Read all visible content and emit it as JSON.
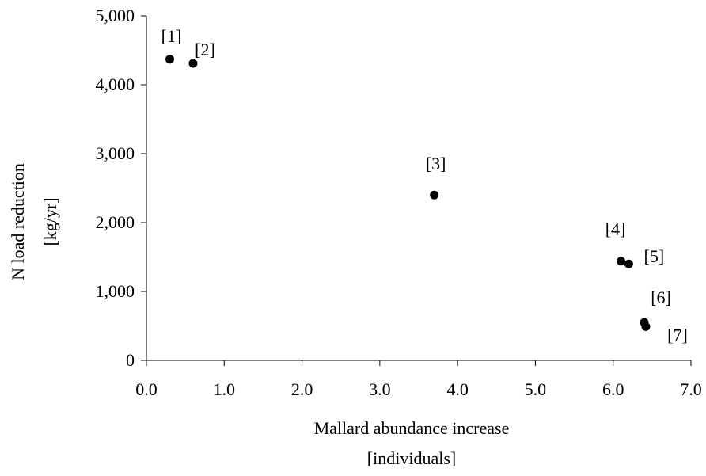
{
  "chart_data": {
    "type": "scatter",
    "title": "",
    "xlabel": "Mallard abundance increase",
    "xlabel_unit": "[individuals]",
    "ylabel": "N load reduction",
    "ylabel_unit": "[kg/yr]",
    "xlim": [
      0.0,
      7.0
    ],
    "ylim": [
      0,
      5000
    ],
    "x_ticks": [
      0.0,
      1.0,
      2.0,
      3.0,
      4.0,
      5.0,
      6.0,
      7.0
    ],
    "x_tick_labels": [
      "0.0",
      "1.0",
      "2.0",
      "3.0",
      "4.0",
      "5.0",
      "6.0",
      "7.0"
    ],
    "y_ticks": [
      0,
      1000,
      2000,
      3000,
      4000,
      5000
    ],
    "y_tick_labels": [
      "0",
      "1,000",
      "2,000",
      "3,000",
      "4,000",
      "5,000"
    ],
    "grid": false,
    "legend": "none",
    "marker_color": "#000000",
    "points": [
      {
        "label": "[1]",
        "x": 0.3,
        "y": 4370
      },
      {
        "label": "[2]",
        "x": 0.6,
        "y": 4310
      },
      {
        "label": "[3]",
        "x": 3.7,
        "y": 2400
      },
      {
        "label": "[4]",
        "x": 6.1,
        "y": 1440
      },
      {
        "label": "[5]",
        "x": 6.2,
        "y": 1400
      },
      {
        "label": "[6]",
        "x": 6.4,
        "y": 550
      },
      {
        "label": "[7]",
        "x": 6.42,
        "y": 490
      }
    ]
  }
}
